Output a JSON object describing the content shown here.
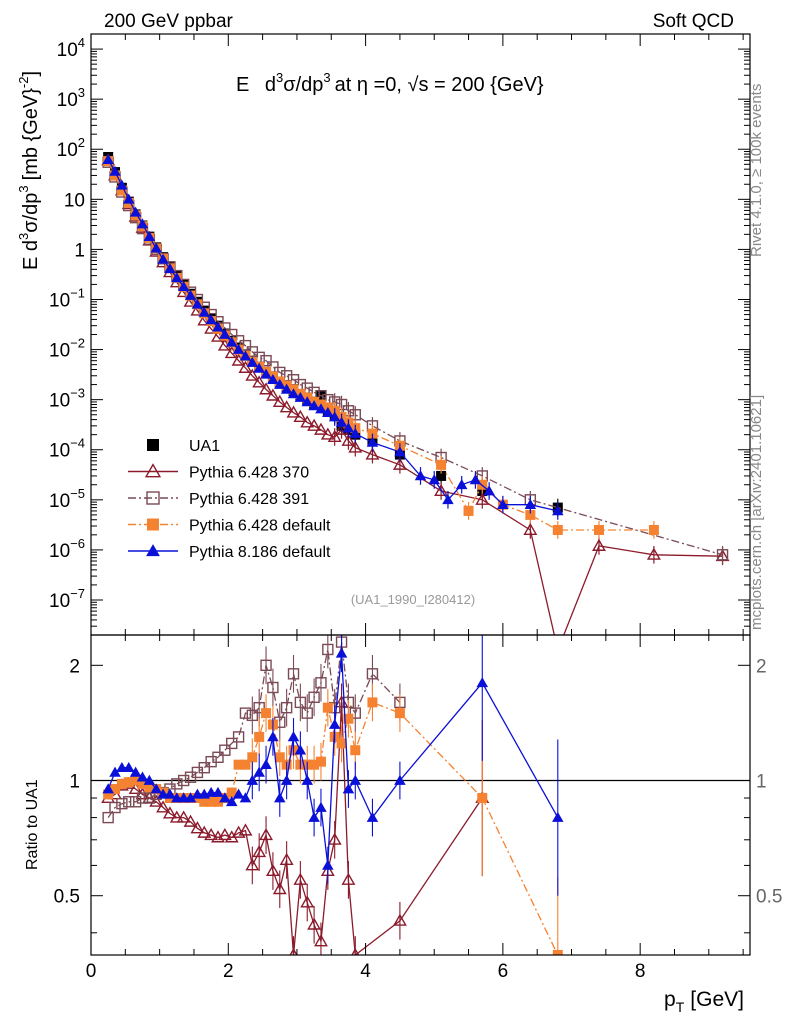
{
  "header": {
    "left": "200 GeV ppbar",
    "right": "Soft QCD"
  },
  "side": {
    "rivet": "Rivet 4.1.0, ≥ 100k events",
    "mcplots": "mcplots.cern.ch [arXiv:2401.10621]"
  },
  "colors": {
    "data": "#000000",
    "p370": "#8b1a2b",
    "p391": "#7a4a55",
    "pdef": "#f58231",
    "p8": "#0a10d8"
  },
  "chart_data": [
    {
      "type": "scatter",
      "panel": "main",
      "title": "E d³σ/dp³ at η =0, √s = 200 {GeV}",
      "title_parts": {
        "e": "E",
        "d": "d",
        "sup3": "3",
        "sigma": "σ/dp",
        "at": "at",
        "eta": "η =0,",
        "sqrt": "√",
        "s": "s = 200 {GeV}"
      },
      "ylabel_parts": {
        "a": "E d",
        "b": "3",
        "c": "σ/dp",
        "d": "3",
        "e": "[mb {GeV}",
        "f": "-2",
        "g": "]"
      },
      "analysis_tag": "(UA1_1990_I280412)",
      "yscale": "log",
      "xlim": [
        0,
        9.6
      ],
      "ylim": [
        2e-08,
        20000
      ],
      "yticks": [
        {
          "v": 10000.0,
          "base": "10",
          "exp": "4"
        },
        {
          "v": 1000.0,
          "base": "10",
          "exp": "3"
        },
        {
          "v": 100.0,
          "base": "10",
          "exp": "2"
        },
        {
          "v": 10,
          "base": "10",
          "exp": ""
        },
        {
          "v": 1,
          "base": "1",
          "exp": ""
        },
        {
          "v": 0.1,
          "base": "10",
          "exp": "−1"
        },
        {
          "v": 0.01,
          "base": "10",
          "exp": "−2"
        },
        {
          "v": 0.001,
          "base": "10",
          "exp": "−3"
        },
        {
          "v": 0.0001,
          "base": "10",
          "exp": "−4"
        },
        {
          "v": 1e-05,
          "base": "10",
          "exp": "−5"
        },
        {
          "v": 1e-06,
          "base": "10",
          "exp": "−6"
        },
        {
          "v": 1e-07,
          "base": "10",
          "exp": "−7"
        }
      ],
      "legend": [
        {
          "key": "data",
          "label": "UA1",
          "marker": "square-filled",
          "line": "none"
        },
        {
          "key": "p370",
          "label": "Pythia 6.428 370",
          "marker": "triangle-open",
          "line": "solid"
        },
        {
          "key": "p391",
          "label": "Pythia 6.428 391",
          "marker": "square-open",
          "line": "dashdot"
        },
        {
          "key": "pdef",
          "label": "Pythia 6.428 default",
          "marker": "square-filled",
          "line": "dashdot"
        },
        {
          "key": "p8",
          "label": "Pythia 8.186 default",
          "marker": "triangle-filled",
          "line": "solid"
        }
      ],
      "series": [
        {
          "key": "data",
          "name": "UA1",
          "x": [
            0.25,
            0.35,
            0.45,
            0.55,
            0.65,
            0.75,
            0.85,
            0.95,
            1.05,
            1.15,
            1.25,
            1.35,
            1.45,
            1.55,
            1.65,
            1.75,
            1.85,
            1.95,
            2.05,
            2.15,
            2.25,
            2.35,
            2.45,
            2.55,
            2.65,
            2.75,
            2.85,
            2.95,
            3.05,
            3.15,
            3.25,
            3.35,
            3.45,
            3.55,
            3.65,
            3.75,
            3.85,
            4.1,
            4.5,
            5.1,
            5.7,
            6.8
          ],
          "y": [
            70,
            35,
            17,
            9,
            5,
            3,
            1.8,
            1.1,
            0.7,
            0.45,
            0.3,
            0.2,
            0.13,
            0.09,
            0.06,
            0.042,
            0.03,
            0.021,
            0.015,
            0.011,
            0.008,
            0.006,
            0.0045,
            0.0035,
            0.0027,
            0.0022,
            0.0018,
            0.0015,
            0.0012,
            0.001,
            0.0008,
            0.0012,
            0.0006,
            0.0005,
            0.0003,
            0.00025,
            0.0002,
            0.00015,
            8e-05,
            3e-05,
            1.5e-05,
            7e-06
          ]
        },
        {
          "key": "p370",
          "name": "Pythia 6.428 370",
          "x": [
            0.25,
            0.35,
            0.45,
            0.55,
            0.65,
            0.75,
            0.85,
            0.95,
            1.05,
            1.15,
            1.25,
            1.35,
            1.45,
            1.55,
            1.65,
            1.75,
            1.85,
            1.95,
            2.05,
            2.15,
            2.25,
            2.35,
            2.45,
            2.55,
            2.65,
            2.75,
            2.85,
            2.95,
            3.05,
            3.15,
            3.25,
            3.35,
            3.45,
            3.55,
            3.65,
            3.75,
            3.85,
            4.1,
            4.5,
            5.1,
            5.7,
            6.4,
            6.8,
            7.4,
            8.2,
            9.2
          ],
          "y": [
            60,
            30,
            15,
            8,
            4.5,
            2.7,
            1.5,
            0.9,
            0.55,
            0.35,
            0.22,
            0.14,
            0.09,
            0.06,
            0.038,
            0.026,
            0.018,
            0.012,
            0.0085,
            0.006,
            0.0043,
            0.003,
            0.0022,
            0.0016,
            0.0012,
            0.0009,
            0.0007,
            0.00055,
            0.00045,
            0.00035,
            0.0003,
            0.00025,
            0.0002,
            0.00018,
            0.00025,
            0.00015,
            0.00011,
            8e-05,
            5e-05,
            1.5e-05,
            1e-05,
            2.5e-06,
            0,
            1.2e-06,
            8e-07,
            7.5e-07
          ]
        },
        {
          "key": "p391",
          "name": "Pythia 6.428 391",
          "x": [
            0.25,
            0.35,
            0.45,
            0.55,
            0.65,
            0.75,
            0.85,
            0.95,
            1.05,
            1.15,
            1.25,
            1.35,
            1.45,
            1.55,
            1.65,
            1.75,
            1.85,
            1.95,
            2.05,
            2.15,
            2.25,
            2.35,
            2.45,
            2.55,
            2.65,
            2.75,
            2.85,
            2.95,
            3.05,
            3.15,
            3.25,
            3.35,
            3.45,
            3.55,
            3.65,
            3.75,
            3.85,
            4.1,
            4.5,
            5.1,
            5.7,
            6.4,
            9.2
          ],
          "y": [
            55,
            28,
            14,
            7.5,
            4.3,
            2.6,
            1.6,
            1.0,
            0.65,
            0.45,
            0.3,
            0.2,
            0.14,
            0.1,
            0.07,
            0.05,
            0.036,
            0.027,
            0.02,
            0.015,
            0.012,
            0.009,
            0.007,
            0.006,
            0.0045,
            0.0035,
            0.003,
            0.0025,
            0.002,
            0.0017,
            0.0014,
            0.0012,
            0.001,
            0.0009,
            0.0008,
            0.0006,
            0.0005,
            0.0003,
            0.00015,
            7e-05,
            3e-05,
            1e-05,
            8e-07
          ]
        },
        {
          "key": "pdef",
          "name": "Pythia 6.428 default",
          "x": [
            0.25,
            0.35,
            0.45,
            0.55,
            0.65,
            0.75,
            0.85,
            0.95,
            1.05,
            1.15,
            1.25,
            1.35,
            1.45,
            1.55,
            1.65,
            1.75,
            1.85,
            1.95,
            2.05,
            2.15,
            2.25,
            2.35,
            2.45,
            2.55,
            2.65,
            2.75,
            2.85,
            2.95,
            3.05,
            3.15,
            3.25,
            3.35,
            3.45,
            3.55,
            3.65,
            3.75,
            3.85,
            4.1,
            4.5,
            5.1,
            5.5,
            5.7,
            6.0,
            6.4,
            6.8,
            7.4,
            8.2
          ],
          "y": [
            58,
            30,
            15,
            8.5,
            4.8,
            2.9,
            1.7,
            1.05,
            0.65,
            0.42,
            0.27,
            0.18,
            0.12,
            0.08,
            0.053,
            0.037,
            0.026,
            0.019,
            0.014,
            0.01,
            0.0075,
            0.0057,
            0.0045,
            0.0036,
            0.0029,
            0.0023,
            0.0019,
            0.0016,
            0.0013,
            0.0011,
            0.0009,
            0.0008,
            0.0007,
            0.0006,
            0.00045,
            0.00035,
            0.00027,
            0.00021,
            0.00012,
            5e-05,
            6e-06,
            2e-05,
            8e-06,
            5e-06,
            2.5e-06,
            2.5e-06,
            2.5e-06
          ]
        },
        {
          "key": "p8",
          "name": "Pythia 8.186 default",
          "x": [
            0.25,
            0.35,
            0.45,
            0.55,
            0.65,
            0.75,
            0.85,
            0.95,
            1.05,
            1.15,
            1.25,
            1.35,
            1.45,
            1.55,
            1.65,
            1.75,
            1.85,
            1.95,
            2.05,
            2.15,
            2.25,
            2.35,
            2.45,
            2.55,
            2.65,
            2.75,
            2.85,
            2.95,
            3.05,
            3.15,
            3.25,
            3.35,
            3.45,
            3.55,
            3.65,
            3.75,
            3.85,
            4.1,
            4.5,
            4.8,
            5.0,
            5.2,
            5.4,
            5.6,
            5.8,
            6.0,
            6.4,
            6.8
          ],
          "y": [
            62,
            36,
            19,
            10,
            5.5,
            3.2,
            1.8,
            1.05,
            0.63,
            0.41,
            0.27,
            0.18,
            0.12,
            0.08,
            0.055,
            0.039,
            0.028,
            0.02,
            0.014,
            0.01,
            0.0074,
            0.0055,
            0.0042,
            0.0032,
            0.0025,
            0.002,
            0.0016,
            0.0013,
            0.0011,
            0.0009,
            0.00075,
            0.00065,
            0.00055,
            0.00045,
            0.00035,
            0.00027,
            0.00021,
            0.00014,
            9e-05,
            3e-05,
            2.5e-05,
            1e-05,
            2e-05,
            2.5e-05,
            1.5e-05,
            8e-06,
            8e-06,
            6e-06
          ]
        }
      ]
    },
    {
      "type": "scatter",
      "panel": "ratio",
      "ylabel": "Ratio to UA1",
      "xlabel": "p",
      "xlabel_sub": "T",
      "xlabel_unit": "[GeV]",
      "yscale": "log",
      "xlim": [
        0,
        9.6
      ],
      "ylim": [
        0.35,
        2.4
      ],
      "xticks": [
        0,
        2,
        4,
        6,
        8
      ],
      "yticks": [
        0.5,
        1,
        2
      ],
      "series": [
        {
          "key": "p370",
          "name": "Pythia 6.428 370",
          "x": [
            0.25,
            0.35,
            0.45,
            0.55,
            0.65,
            0.75,
            0.85,
            0.95,
            1.05,
            1.15,
            1.25,
            1.35,
            1.45,
            1.55,
            1.65,
            1.75,
            1.85,
            1.95,
            2.05,
            2.15,
            2.25,
            2.35,
            2.45,
            2.55,
            2.65,
            2.75,
            2.85,
            2.95,
            3.05,
            3.15,
            3.25,
            3.35,
            3.45,
            3.55,
            3.65,
            3.75,
            3.85,
            4.5,
            5.7
          ],
          "y": [
            0.9,
            0.92,
            0.97,
            0.98,
            0.95,
            0.92,
            0.9,
            0.88,
            0.85,
            0.82,
            0.8,
            0.8,
            0.78,
            0.75,
            0.73,
            0.72,
            0.71,
            0.72,
            0.71,
            0.73,
            0.74,
            0.6,
            0.65,
            0.72,
            0.58,
            0.52,
            0.62,
            0.35,
            0.55,
            0.48,
            0.42,
            0.38,
            0.58,
            0.7,
            1.6,
            0.55,
            0.35,
            0.43,
            0.9
          ]
        },
        {
          "key": "p391",
          "name": "Pythia 6.428 391",
          "x": [
            0.25,
            0.35,
            0.45,
            0.55,
            0.65,
            0.75,
            0.85,
            0.95,
            1.05,
            1.15,
            1.25,
            1.35,
            1.45,
            1.55,
            1.65,
            1.75,
            1.85,
            1.95,
            2.05,
            2.15,
            2.25,
            2.35,
            2.45,
            2.55,
            2.65,
            2.75,
            2.85,
            2.95,
            3.05,
            3.15,
            3.25,
            3.35,
            3.45,
            3.55,
            3.65,
            3.75,
            3.85,
            4.1,
            4.5
          ],
          "y": [
            0.8,
            0.85,
            0.87,
            0.88,
            0.88,
            0.9,
            0.9,
            0.92,
            0.93,
            0.95,
            0.98,
            1.0,
            1.02,
            1.05,
            1.08,
            1.12,
            1.15,
            1.2,
            1.25,
            1.3,
            1.5,
            1.48,
            1.55,
            2.0,
            1.75,
            1.42,
            1.55,
            1.9,
            1.6,
            1.5,
            1.65,
            1.8,
            2.2,
            1.55,
            2.3,
            1.6,
            1.5,
            1.9,
            1.6
          ]
        },
        {
          "key": "pdef",
          "name": "Pythia 6.428 default",
          "x": [
            0.25,
            0.35,
            0.45,
            0.55,
            0.65,
            0.75,
            0.85,
            0.95,
            1.05,
            1.15,
            1.25,
            1.35,
            1.45,
            1.55,
            1.65,
            1.75,
            1.85,
            1.95,
            2.05,
            2.15,
            2.25,
            2.35,
            2.45,
            2.55,
            2.65,
            2.75,
            2.85,
            2.95,
            3.05,
            3.15,
            3.25,
            3.35,
            3.45,
            3.55,
            3.65,
            3.75,
            3.85,
            4.1,
            4.5,
            5.7,
            6.8
          ],
          "y": [
            0.92,
            0.95,
            0.98,
            0.99,
            1.0,
            0.98,
            0.96,
            0.95,
            0.93,
            0.9,
            0.9,
            0.9,
            0.9,
            0.9,
            0.88,
            0.88,
            0.88,
            0.9,
            0.93,
            1.1,
            1.1,
            1.15,
            1.3,
            1.5,
            1.4,
            1.15,
            1.1,
            1.2,
            1.1,
            1.1,
            1.1,
            1.12,
            1.55,
            1.3,
            1.25,
            1.45,
            1.2,
            1.6,
            1.5,
            0.9,
            0.35
          ]
        },
        {
          "key": "p8",
          "name": "Pythia 8.186 default",
          "x": [
            0.25,
            0.35,
            0.45,
            0.55,
            0.65,
            0.75,
            0.85,
            0.95,
            1.05,
            1.15,
            1.25,
            1.35,
            1.45,
            1.55,
            1.65,
            1.75,
            1.85,
            1.95,
            2.05,
            2.15,
            2.25,
            2.35,
            2.45,
            2.55,
            2.65,
            2.75,
            2.85,
            2.95,
            3.05,
            3.15,
            3.25,
            3.35,
            3.45,
            3.55,
            3.65,
            3.75,
            3.85,
            4.1,
            4.5,
            5.7,
            6.8
          ],
          "y": [
            0.95,
            1.05,
            1.08,
            1.08,
            1.05,
            1.02,
            1.0,
            0.95,
            0.92,
            0.92,
            0.9,
            0.9,
            0.9,
            0.92,
            0.92,
            0.93,
            0.93,
            0.9,
            0.88,
            0.92,
            0.9,
            1.0,
            1.05,
            1.1,
            1.3,
            0.9,
            1.0,
            1.3,
            1.2,
            1.0,
            0.8,
            0.85,
            0.6,
            1.4,
            2.15,
            0.95,
            1.0,
            0.8,
            1.0,
            1.8,
            0.8
          ]
        }
      ]
    }
  ]
}
